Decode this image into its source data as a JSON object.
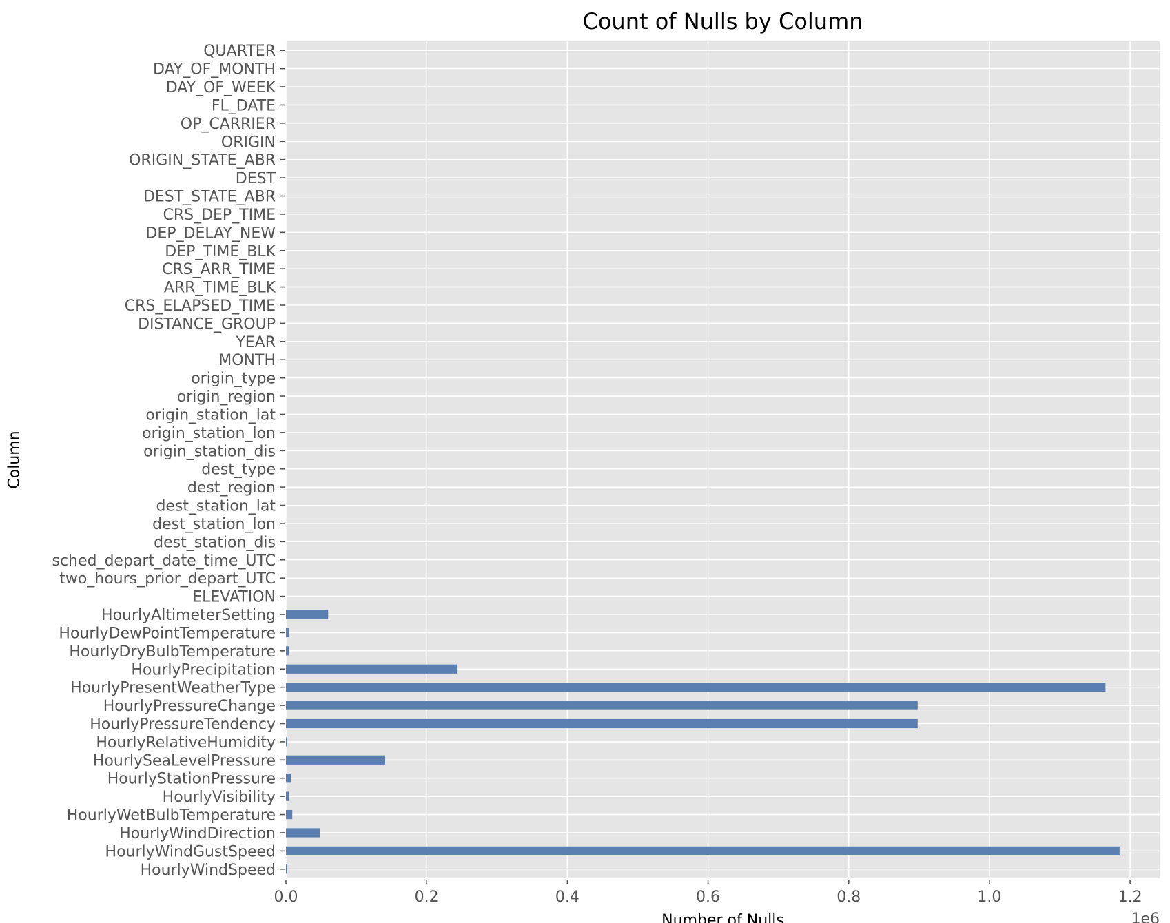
{
  "chart_data": {
    "type": "bar",
    "orientation": "horizontal",
    "title": "Count of Nulls by Column",
    "xlabel": "Number of Nulls",
    "ylabel": "Column",
    "x_offset_label": "1e6",
    "x_tick_labels": [
      "0.0",
      "0.2",
      "0.4",
      "0.6",
      "0.8",
      "1.0",
      "1.2"
    ],
    "xlim": [
      0,
      1.242
    ],
    "grid": true,
    "colors": {
      "bar": "#5b7fb0",
      "background": "#e5e5e5",
      "grid": "#ffffff"
    },
    "categories": [
      "QUARTER",
      "DAY_OF_MONTH",
      "DAY_OF_WEEK",
      "FL_DATE",
      "OP_CARRIER",
      "ORIGIN",
      "ORIGIN_STATE_ABR",
      "DEST",
      "DEST_STATE_ABR",
      "CRS_DEP_TIME",
      "DEP_DELAY_NEW",
      "DEP_TIME_BLK",
      "CRS_ARR_TIME",
      "ARR_TIME_BLK",
      "CRS_ELAPSED_TIME",
      "DISTANCE_GROUP",
      "YEAR",
      "MONTH",
      "origin_type",
      "origin_region",
      "origin_station_lat",
      "origin_station_lon",
      "origin_station_dis",
      "dest_type",
      "dest_region",
      "dest_station_lat",
      "dest_station_lon",
      "dest_station_dis",
      "sched_depart_date_time_UTC",
      "two_hours_prior_depart_UTC",
      "ELEVATION",
      "HourlyAltimeterSetting",
      "HourlyDewPointTemperature",
      "HourlyDryBulbTemperature",
      "HourlyPrecipitation",
      "HourlyPresentWeatherType",
      "HourlyPressureChange",
      "HourlyPressureTendency",
      "HourlyRelativeHumidity",
      "HourlySeaLevelPressure",
      "HourlyStationPressure",
      "HourlyVisibility",
      "HourlyWetBulbTemperature",
      "HourlyWindDirection",
      "HourlyWindGustSpeed",
      "HourlyWindSpeed"
    ],
    "values": [
      0,
      0,
      0,
      0,
      0,
      0,
      0,
      0,
      0,
      0,
      0,
      0,
      0,
      0,
      0,
      0,
      0,
      0,
      0,
      0,
      0,
      0,
      0,
      0,
      0,
      0,
      0,
      0,
      0,
      0,
      0,
      0.06,
      0.004,
      0.004,
      0.243,
      1.165,
      0.898,
      0.898,
      0.002,
      0.141,
      0.007,
      0.004,
      0.009,
      0.048,
      1.185,
      0.002
    ]
  }
}
